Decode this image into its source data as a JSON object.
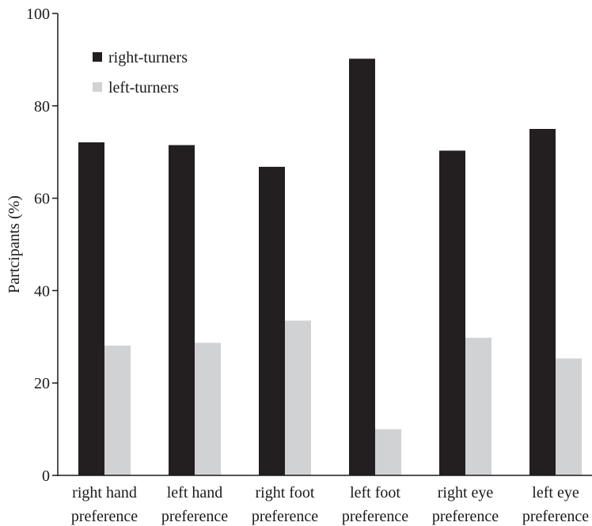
{
  "chart_data": {
    "type": "bar",
    "ylabel": "Partcipants (%)",
    "ylim": [
      0,
      100
    ],
    "yticks": [
      0,
      20,
      40,
      60,
      80,
      100
    ],
    "ytick_labels": [
      "0",
      "20",
      "40",
      "60",
      "80",
      "100"
    ],
    "categories": [
      [
        "right hand",
        "preference"
      ],
      [
        "left hand",
        "preference"
      ],
      [
        "right foot",
        "preference"
      ],
      [
        "left foot",
        "preference"
      ],
      [
        "right eye",
        "preference"
      ],
      [
        "left eye",
        "preference"
      ]
    ],
    "series": [
      {
        "name": "right-turners",
        "color": "#231f20",
        "values": [
          72.1,
          71.5,
          66.8,
          90.2,
          70.3,
          75.0
        ]
      },
      {
        "name": "left-turners",
        "color": "#d1d2d4",
        "values": [
          28.1,
          28.7,
          33.5,
          10.0,
          29.8,
          25.3
        ]
      }
    ],
    "legend_position": "top-left",
    "grid": false
  }
}
